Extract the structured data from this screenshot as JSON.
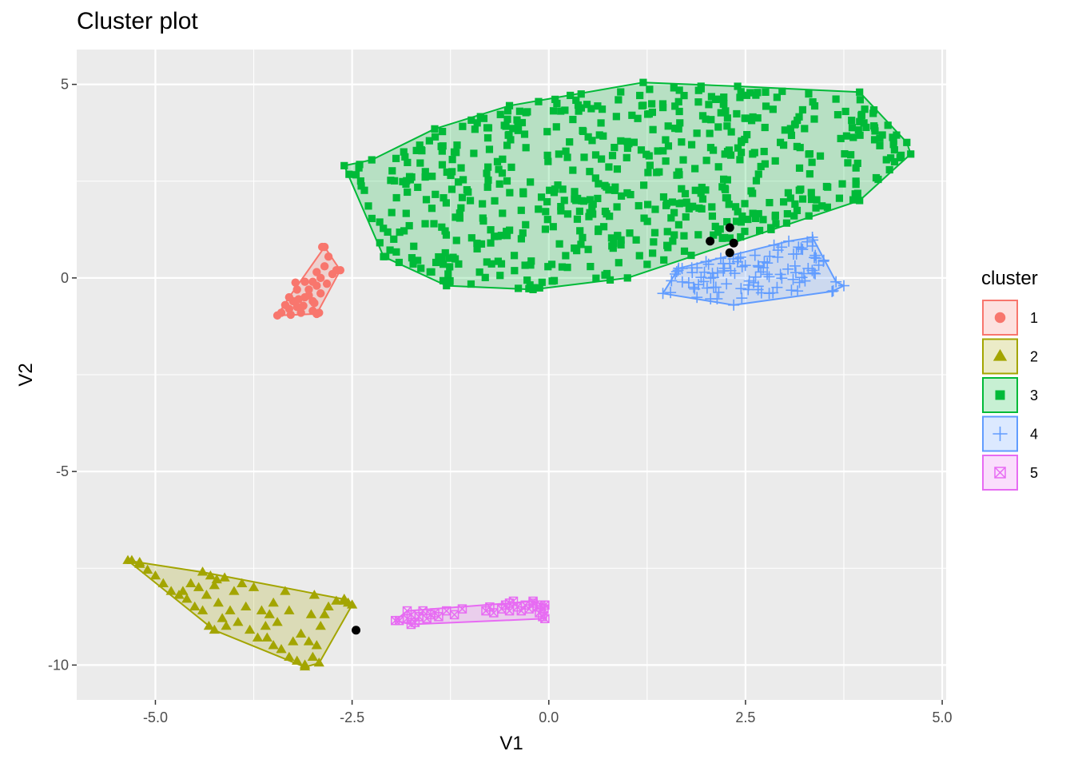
{
  "chart_data": {
    "type": "scatter",
    "title": "Cluster plot",
    "xlabel": "V1",
    "ylabel": "V2",
    "xlim": [
      -6,
      5.05
    ],
    "ylim": [
      -10.9,
      5.9
    ],
    "x_ticks": [
      -5.0,
      -2.5,
      0.0,
      2.5,
      5.0
    ],
    "x_tick_labels": [
      "-5.0",
      "-2.5",
      "0.0",
      "2.5",
      "5.0"
    ],
    "y_ticks": [
      -10,
      -5,
      0,
      5
    ],
    "y_tick_labels": [
      "-10",
      "-5",
      "0",
      "5"
    ],
    "grid": true,
    "legend": {
      "title": "cluster",
      "position": "right"
    },
    "series": [
      {
        "name": "1",
        "color": "#F8766D",
        "shape": "circle",
        "hull": [
          [
            -3.45,
            -0.97
          ],
          [
            -2.95,
            -0.93
          ],
          [
            -2.65,
            0.2
          ],
          [
            -2.85,
            0.8
          ],
          [
            -3.3,
            -0.5
          ]
        ],
        "points": [
          [
            -3.4,
            -0.9
          ],
          [
            -3.35,
            -0.7
          ],
          [
            -3.3,
            -0.8
          ],
          [
            -3.25,
            -0.6
          ],
          [
            -3.2,
            -0.75
          ],
          [
            -3.15,
            -0.9
          ],
          [
            -3.1,
            -0.5
          ],
          [
            -3.05,
            -0.3
          ],
          [
            -3.0,
            -0.6
          ],
          [
            -3.0,
            -0.85
          ],
          [
            -2.95,
            -0.2
          ],
          [
            -2.9,
            0.0
          ],
          [
            -2.9,
            -0.4
          ],
          [
            -2.85,
            0.3
          ],
          [
            -2.8,
            0.55
          ],
          [
            -2.75,
            0.1
          ],
          [
            -2.7,
            0.2
          ],
          [
            -2.88,
            0.8
          ],
          [
            -3.2,
            -0.3
          ],
          [
            -3.1,
            -0.1
          ],
          [
            -3.05,
            -0.45
          ],
          [
            -2.98,
            -0.65
          ],
          [
            -3.18,
            -0.55
          ],
          [
            -2.92,
            -0.9
          ],
          [
            -3.28,
            -0.95
          ],
          [
            -2.82,
            -0.15
          ],
          [
            -3.12,
            -0.72
          ],
          [
            -2.95,
            0.15
          ],
          [
            -3.0,
            -0.1
          ],
          [
            -3.22,
            -0.12
          ]
        ]
      },
      {
        "name": "2",
        "color": "#A3A500",
        "shape": "triangle",
        "hull": [
          [
            -5.35,
            -7.3
          ],
          [
            -4.25,
            -9.1
          ],
          [
            -3.1,
            -10.05
          ],
          [
            -2.92,
            -9.95
          ],
          [
            -2.5,
            -8.45
          ],
          [
            -2.6,
            -8.3
          ],
          [
            -4.4,
            -7.6
          ],
          [
            -5.2,
            -7.35
          ]
        ],
        "points": [
          [
            -5.3,
            -7.3
          ],
          [
            -5.2,
            -7.4
          ],
          [
            -5.1,
            -7.55
          ],
          [
            -5.0,
            -7.7
          ],
          [
            -4.9,
            -7.9
          ],
          [
            -4.8,
            -8.1
          ],
          [
            -4.7,
            -8.2
          ],
          [
            -4.6,
            -8.3
          ],
          [
            -4.5,
            -8.5
          ],
          [
            -4.4,
            -8.6
          ],
          [
            -4.35,
            -8.2
          ],
          [
            -4.3,
            -7.7
          ],
          [
            -4.25,
            -7.95
          ],
          [
            -4.2,
            -8.4
          ],
          [
            -4.15,
            -8.8
          ],
          [
            -4.1,
            -9.0
          ],
          [
            -4.05,
            -8.6
          ],
          [
            -4.0,
            -8.1
          ],
          [
            -3.9,
            -7.9
          ],
          [
            -3.85,
            -8.5
          ],
          [
            -3.8,
            -9.1
          ],
          [
            -3.7,
            -9.3
          ],
          [
            -3.6,
            -9.0
          ],
          [
            -3.55,
            -8.7
          ],
          [
            -3.5,
            -9.5
          ],
          [
            -3.4,
            -9.6
          ],
          [
            -3.3,
            -9.8
          ],
          [
            -3.2,
            -9.9
          ],
          [
            -3.1,
            -10.0
          ],
          [
            -3.0,
            -9.8
          ],
          [
            -2.95,
            -9.5
          ],
          [
            -2.9,
            -9.0
          ],
          [
            -2.85,
            -8.7
          ],
          [
            -2.8,
            -8.5
          ],
          [
            -2.7,
            -8.35
          ],
          [
            -2.6,
            -8.35
          ],
          [
            -2.55,
            -8.4
          ],
          [
            -3.5,
            -8.4
          ],
          [
            -3.3,
            -8.6
          ],
          [
            -3.15,
            -9.2
          ],
          [
            -3.35,
            -8.1
          ],
          [
            -3.45,
            -8.9
          ],
          [
            -3.65,
            -8.6
          ],
          [
            -3.75,
            -8.0
          ],
          [
            -3.95,
            -8.9
          ],
          [
            -4.45,
            -8.0
          ],
          [
            -4.55,
            -7.9
          ],
          [
            -4.65,
            -8.1
          ],
          [
            -4.12,
            -7.75
          ],
          [
            -3.25,
            -9.4
          ],
          [
            -3.05,
            -9.4
          ],
          [
            -2.98,
            -8.2
          ],
          [
            -3.58,
            -9.3
          ],
          [
            -3.02,
            -8.7
          ],
          [
            -4.32,
            -9.0
          ],
          [
            -4.22,
            -7.8
          ]
        ]
      },
      {
        "name": "3",
        "color": "#00BA38",
        "shape": "square",
        "hull": [
          [
            -2.6,
            2.9
          ],
          [
            -2.25,
            3.05
          ],
          [
            -1.45,
            3.85
          ],
          [
            -0.5,
            4.45
          ],
          [
            1.2,
            5.05
          ],
          [
            2.4,
            4.95
          ],
          [
            3.95,
            4.8
          ],
          [
            4.55,
            3.5
          ],
          [
            4.6,
            3.2
          ],
          [
            3.95,
            2.0
          ],
          [
            1.0,
            0.0
          ],
          [
            -0.2,
            -0.3
          ],
          [
            -1.3,
            -0.2
          ],
          [
            -2.1,
            0.55
          ]
        ],
        "points": []
      },
      {
        "name": "4",
        "color": "#619CFF",
        "shape": "plus",
        "hull": [
          [
            1.45,
            -0.4
          ],
          [
            2.35,
            -0.7
          ],
          [
            3.6,
            -0.35
          ],
          [
            3.75,
            -0.2
          ],
          [
            3.65,
            -0.1
          ],
          [
            3.35,
            1.05
          ],
          [
            3.05,
            0.95
          ],
          [
            1.65,
            0.25
          ]
        ],
        "points": []
      },
      {
        "name": "5",
        "color": "#E76BF3",
        "shape": "square-cross",
        "hull": [
          [
            -1.95,
            -8.85
          ],
          [
            -1.75,
            -8.95
          ],
          [
            -0.05,
            -8.8
          ],
          [
            -0.05,
            -8.45
          ],
          [
            -0.2,
            -8.35
          ],
          [
            -0.5,
            -8.4
          ],
          [
            -1.8,
            -8.6
          ]
        ],
        "points": [
          [
            -1.9,
            -8.85
          ],
          [
            -1.8,
            -8.8
          ],
          [
            -1.75,
            -8.7
          ],
          [
            -1.7,
            -8.9
          ],
          [
            -1.65,
            -8.75
          ],
          [
            -1.6,
            -8.6
          ],
          [
            -1.55,
            -8.8
          ],
          [
            -1.5,
            -8.7
          ],
          [
            -1.45,
            -8.65
          ],
          [
            -1.4,
            -8.75
          ],
          [
            -1.3,
            -8.6
          ],
          [
            -1.2,
            -8.7
          ],
          [
            -1.1,
            -8.55
          ],
          [
            -0.8,
            -8.6
          ],
          [
            -0.75,
            -8.5
          ],
          [
            -0.7,
            -8.65
          ],
          [
            -0.6,
            -8.55
          ],
          [
            -0.55,
            -8.45
          ],
          [
            -0.5,
            -8.6
          ],
          [
            -0.45,
            -8.35
          ],
          [
            -0.4,
            -8.5
          ],
          [
            -0.35,
            -8.6
          ],
          [
            -0.3,
            -8.45
          ],
          [
            -0.25,
            -8.55
          ],
          [
            -0.2,
            -8.4
          ],
          [
            -0.15,
            -8.5
          ],
          [
            -0.12,
            -8.65
          ],
          [
            -0.1,
            -8.45
          ],
          [
            -0.08,
            -8.75
          ],
          [
            -0.06,
            -8.55
          ]
        ]
      }
    ],
    "centers": [
      [
        2.05,
        0.95
      ],
      [
        2.3,
        1.3
      ],
      [
        2.35,
        0.9
      ],
      [
        2.3,
        0.65
      ],
      [
        -2.45,
        -9.1
      ]
    ]
  }
}
